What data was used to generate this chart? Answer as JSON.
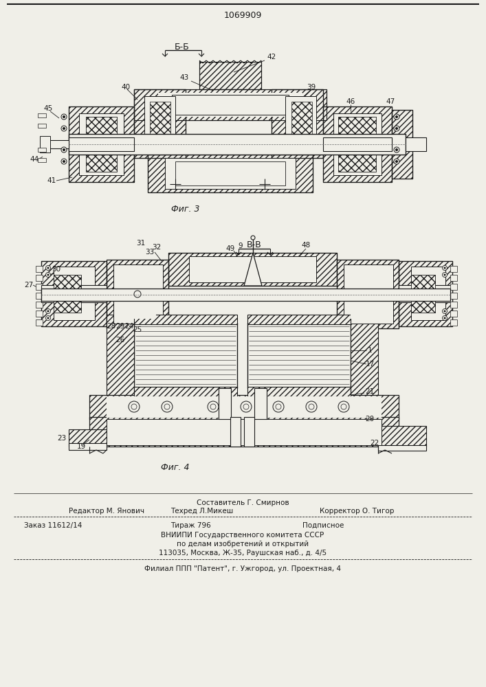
{
  "patent_number": "1069909",
  "fig3_label": "Фиг. 3",
  "fig4_label": "Фиг. 4",
  "section_b_label": "Б-Б",
  "section_v_label": "В-В",
  "footer_sestavitel": "Составитель Г. Смирнов",
  "footer_redaktor": "Редактор М. Янович",
  "footer_tehred": "Техред Л.Микеш",
  "footer_korrektor": "Корректор О. Тигор",
  "footer_zakaz": "Заказ 11612/14",
  "footer_tirazh": "Тираж 796",
  "footer_podpisnoe": "Подписное",
  "footer_vniipи": "ВНИИПИ Государственного комитета СССР",
  "footer_podel": "по делам изобретений и открытий",
  "footer_addr": "113035, Москва, Ж-35, Раушская наб., д. 4/5",
  "footer_filial": "Филиал ППП \"Патент\", г. Ужгород, ул. Проектная, 4",
  "bg_color": "#f0efe8",
  "draw_color": "#1a1a1a"
}
